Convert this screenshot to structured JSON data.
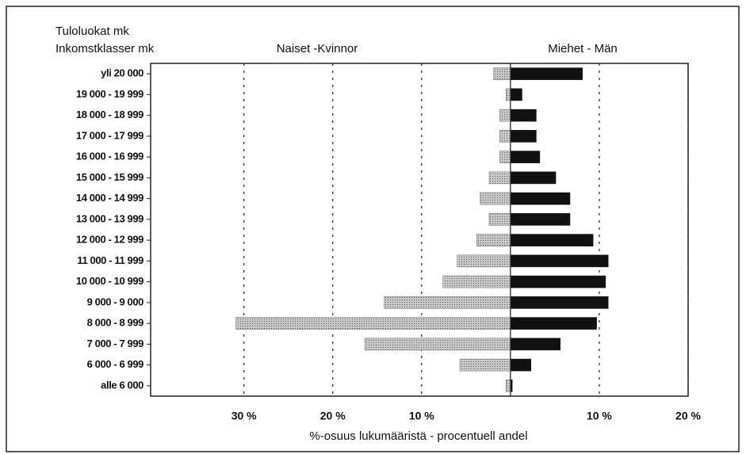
{
  "chart_data": {
    "type": "pyramid",
    "row_titles": [
      "Tuloluokat mk",
      "Inkomstklasser mk"
    ],
    "xlabel": "%-osuus lukumääristä - procentuell andel",
    "categories": [
      "yli  20 000",
      "19 000 - 19 999",
      "18 000 - 18 999",
      "17 000 - 17 999",
      "16 000 - 16 999",
      "15 000 - 15 999",
      "14 000 - 14 999",
      "13 000 - 13 999",
      "12 000 - 12 999",
      "11 000 - 11 999",
      "10 000 - 10 999",
      "9 000 - 9 000",
      "8 000 - 8 999",
      "7 000 - 7 999",
      "6 000 - 6 999",
      "alle  6 000"
    ],
    "series": [
      {
        "name": "Naiset -Kvinnor",
        "color": "#a8a8a8",
        "values": [
          -1.9,
          -0.5,
          -1.2,
          -1.2,
          -1.2,
          -2.4,
          -3.4,
          -2.4,
          -3.8,
          -6.0,
          -7.6,
          -14.2,
          -30.9,
          -16.4,
          -5.7,
          -0.5
        ]
      },
      {
        "name": "Miehet - Män",
        "color": "#111111",
        "values": [
          8.1,
          1.3,
          2.9,
          2.9,
          3.3,
          5.1,
          6.7,
          6.7,
          9.3,
          11.0,
          10.7,
          11.0,
          9.7,
          5.6,
          2.3,
          0.2
        ]
      }
    ],
    "xlim": [
      -40.5,
      20
    ],
    "xticks": [
      {
        "value": -30,
        "label": "30 %"
      },
      {
        "value": -20,
        "label": "20 %"
      },
      {
        "value": -10,
        "label": "10 %"
      },
      {
        "value": 10,
        "label": "10 %"
      },
      {
        "value": 20,
        "label": "20 %"
      }
    ],
    "grid": true
  }
}
